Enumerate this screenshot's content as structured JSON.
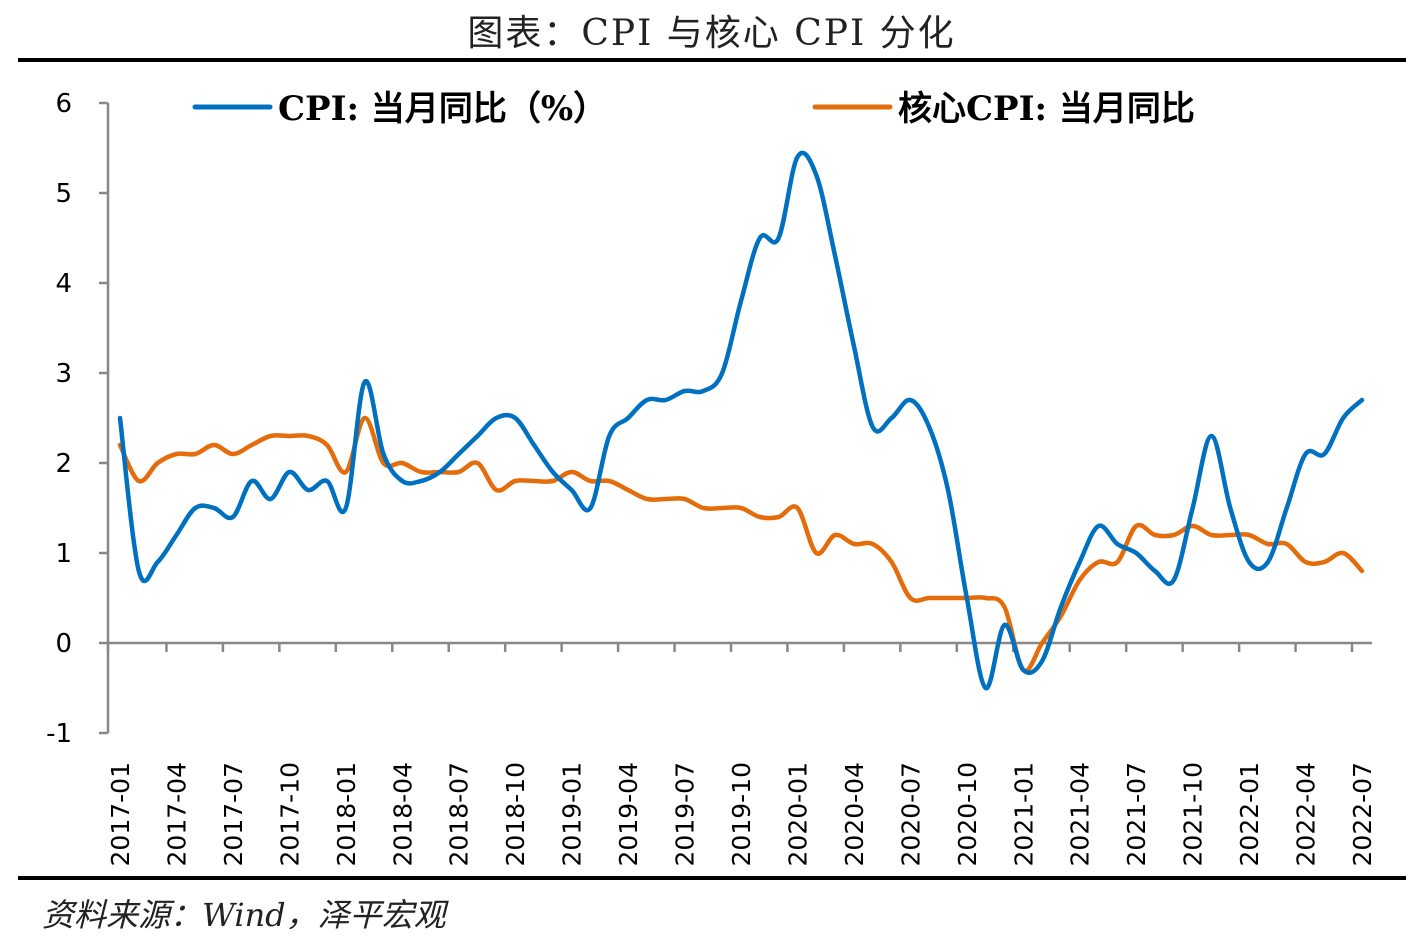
{
  "title": "图表：CPI 与核心 CPI 分化",
  "source": "资料来源：Wind，泽平宏观",
  "chart_data": {
    "type": "line",
    "title": "图表：CPI 与核心 CPI 分化",
    "xlabel": "",
    "ylabel": "",
    "ylim": [
      -1,
      6
    ],
    "yticks": [
      "-1",
      "0",
      "1",
      "2",
      "3",
      "4",
      "5",
      "6"
    ],
    "grid": false,
    "legend_position": "top",
    "x": [
      "2017-01",
      "2017-02",
      "2017-03",
      "2017-04",
      "2017-05",
      "2017-06",
      "2017-07",
      "2017-08",
      "2017-09",
      "2017-10",
      "2017-11",
      "2017-12",
      "2018-01",
      "2018-02",
      "2018-03",
      "2018-04",
      "2018-05",
      "2018-06",
      "2018-07",
      "2018-08",
      "2018-09",
      "2018-10",
      "2018-11",
      "2018-12",
      "2019-01",
      "2019-02",
      "2019-03",
      "2019-04",
      "2019-05",
      "2019-06",
      "2019-07",
      "2019-08",
      "2019-09",
      "2019-10",
      "2019-11",
      "2019-12",
      "2020-01",
      "2020-02",
      "2020-03",
      "2020-04",
      "2020-05",
      "2020-06",
      "2020-07",
      "2020-08",
      "2020-09",
      "2020-10",
      "2020-11",
      "2020-12",
      "2021-01",
      "2021-02",
      "2021-03",
      "2021-04",
      "2021-05",
      "2021-06",
      "2021-07",
      "2021-08",
      "2021-09",
      "2021-10",
      "2021-11",
      "2021-12",
      "2022-01",
      "2022-02",
      "2022-03",
      "2022-04",
      "2022-05",
      "2022-06",
      "2022-07"
    ],
    "xtick_labels": [
      "2017-01",
      "2017-04",
      "2017-07",
      "2017-10",
      "2018-01",
      "2018-04",
      "2018-07",
      "2018-10",
      "2019-01",
      "2019-04",
      "2019-07",
      "2019-10",
      "2020-01",
      "2020-04",
      "2020-07",
      "2020-10",
      "2021-01",
      "2021-04",
      "2021-07",
      "2021-10",
      "2022-01",
      "2022-04",
      "2022-07"
    ],
    "series": [
      {
        "name": "CPI: 当月同比（%）",
        "color": "#0070C0",
        "values": [
          2.5,
          0.8,
          0.9,
          1.2,
          1.5,
          1.5,
          1.4,
          1.8,
          1.6,
          1.9,
          1.7,
          1.8,
          1.5,
          2.9,
          2.1,
          1.8,
          1.8,
          1.9,
          2.1,
          2.3,
          2.5,
          2.5,
          2.2,
          1.9,
          1.7,
          1.5,
          2.3,
          2.5,
          2.7,
          2.7,
          2.8,
          2.8,
          3.0,
          3.8,
          4.5,
          4.5,
          5.4,
          5.2,
          4.3,
          3.3,
          2.4,
          2.5,
          2.7,
          2.4,
          1.7,
          0.5,
          -0.5,
          0.2,
          -0.3,
          -0.2,
          0.4,
          0.9,
          1.3,
          1.1,
          1.0,
          0.8,
          0.7,
          1.5,
          2.3,
          1.5,
          0.9,
          0.9,
          1.5,
          2.1,
          2.1,
          2.5,
          2.7
        ]
      },
      {
        "name": "核心CPI: 当月同比",
        "color": "#E46C0A",
        "values": [
          2.2,
          1.8,
          2.0,
          2.1,
          2.1,
          2.2,
          2.1,
          2.2,
          2.3,
          2.3,
          2.3,
          2.2,
          1.9,
          2.5,
          2.0,
          2.0,
          1.9,
          1.9,
          1.9,
          2.0,
          1.7,
          1.8,
          1.8,
          1.8,
          1.9,
          1.8,
          1.8,
          1.7,
          1.6,
          1.6,
          1.6,
          1.5,
          1.5,
          1.5,
          1.4,
          1.4,
          1.5,
          1.0,
          1.2,
          1.1,
          1.1,
          0.9,
          0.5,
          0.5,
          0.5,
          0.5,
          0.5,
          0.4,
          -0.3,
          0.0,
          0.3,
          0.7,
          0.9,
          0.9,
          1.3,
          1.2,
          1.2,
          1.3,
          1.2,
          1.2,
          1.2,
          1.1,
          1.1,
          0.9,
          0.9,
          1.0,
          0.8
        ]
      }
    ]
  }
}
